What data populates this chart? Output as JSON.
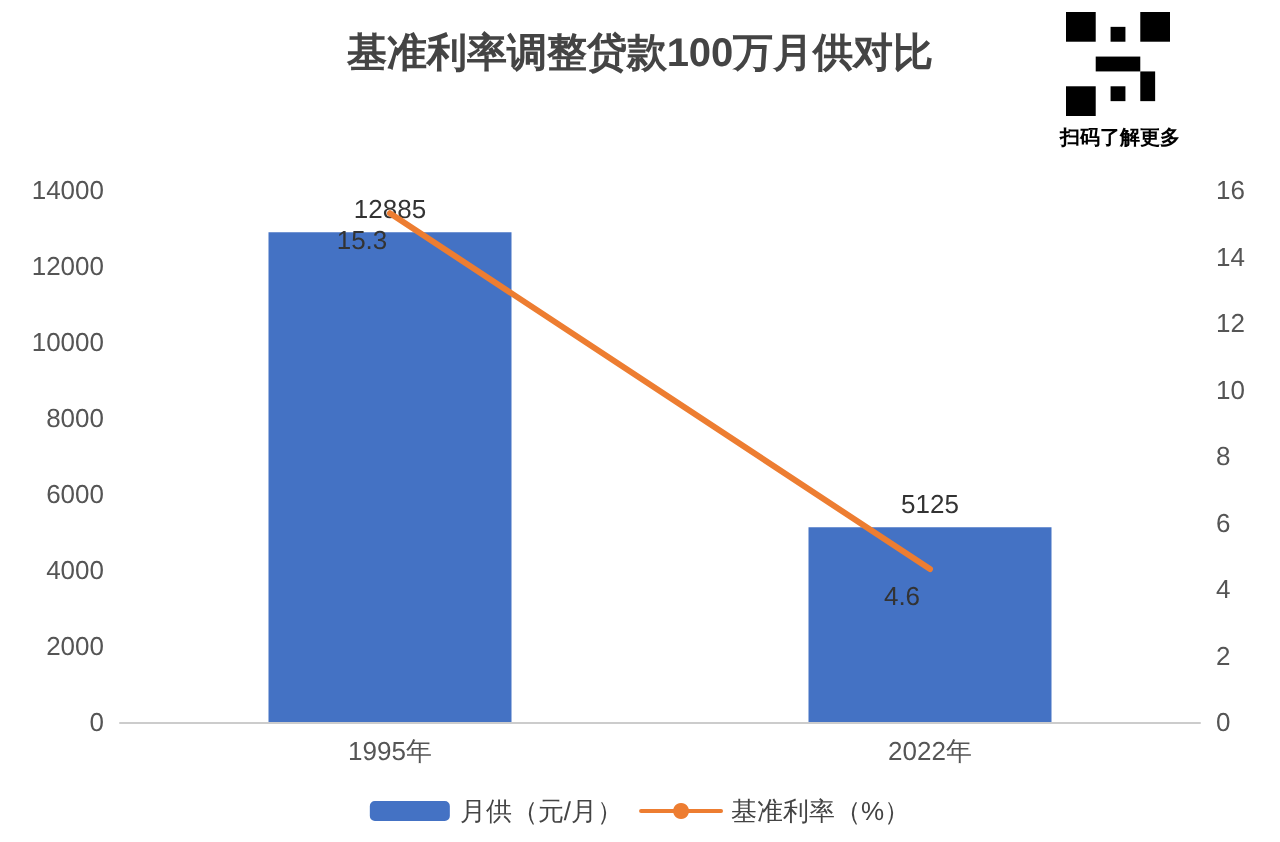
{
  "chart_data": {
    "type": "bar",
    "title": "基准利率调整贷款100万月供对比",
    "categories": [
      "1995年",
      "2022年"
    ],
    "series": [
      {
        "name": "月供（元/月）",
        "color": "#4472c4",
        "values": [
          12885,
          5125
        ]
      },
      {
        "name": "基准利率（%）",
        "type": "line",
        "axis": "y2",
        "color": "#ed7d31",
        "values": [
          15.3,
          4.6
        ]
      }
    ],
    "ylim": [
      0,
      14000
    ],
    "yticks": [
      0,
      2000,
      4000,
      6000,
      8000,
      10000,
      12000,
      14000
    ],
    "y2lim": [
      0,
      16
    ],
    "y2ticks": [
      0,
      2,
      4,
      6,
      8,
      10,
      12,
      14,
      16
    ],
    "data_labels": true,
    "legend": "bottom",
    "grid": false,
    "marker": "none",
    "annotations": [
      "扫码了解更多"
    ]
  }
}
